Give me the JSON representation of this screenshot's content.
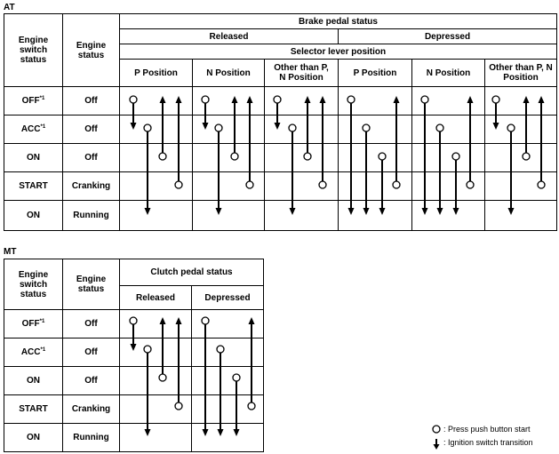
{
  "at": {
    "label": "AT",
    "headers": {
      "engine_switch_status": "Engine switch status",
      "engine_status": "Engine status",
      "brake_pedal_status": "Brake pedal status",
      "released": "Released",
      "depressed": "Depressed",
      "selector_lever_position": "Selector lever position",
      "p_position": "P Position",
      "n_position": "N Position",
      "other_than": "Other than P, N Position"
    },
    "rows": [
      {
        "switch": "OFF",
        "sup": "*1",
        "engine": "Off"
      },
      {
        "switch": "ACC",
        "sup": "*1",
        "engine": "Off"
      },
      {
        "switch": "ON",
        "sup": "",
        "engine": "Off"
      },
      {
        "switch": "START",
        "sup": "",
        "engine": "Cranking"
      },
      {
        "switch": "ON",
        "sup": "",
        "engine": "Running"
      }
    ]
  },
  "mt": {
    "label": "MT",
    "headers": {
      "engine_switch_status": "Engine switch status",
      "engine_status": "Engine status",
      "clutch_pedal_status": "Clutch pedal status",
      "released": "Released",
      "depressed": "Depressed"
    },
    "rows": [
      {
        "switch": "OFF",
        "sup": "*1",
        "engine": "Off"
      },
      {
        "switch": "ACC",
        "sup": "*1",
        "engine": "Off"
      },
      {
        "switch": "ON",
        "sup": "",
        "engine": "Off"
      },
      {
        "switch": "START",
        "sup": "",
        "engine": "Cranking"
      },
      {
        "switch": "ON",
        "sup": "",
        "engine": "Running"
      }
    ]
  },
  "legend": {
    "press": ": Press push button start",
    "transition": ": Ignition switch transition"
  },
  "transitions": {
    "at": [
      [
        [
          0,
          1
        ],
        [
          1,
          4
        ],
        [
          2,
          0
        ],
        [
          3,
          0
        ]
      ],
      [
        [
          0,
          1
        ],
        [
          1,
          4
        ],
        [
          2,
          0
        ],
        [
          3,
          0
        ]
      ],
      [
        [
          0,
          1
        ],
        [
          1,
          4
        ],
        [
          2,
          0
        ],
        [
          3,
          0
        ]
      ],
      [
        [
          0,
          4
        ],
        [
          1,
          4
        ],
        [
          2,
          4
        ],
        [
          3,
          0
        ]
      ],
      [
        [
          0,
          4
        ],
        [
          1,
          4
        ],
        [
          2,
          4
        ],
        [
          3,
          0
        ]
      ],
      [
        [
          0,
          1
        ],
        [
          1,
          4
        ],
        [
          2,
          0
        ],
        [
          3,
          0
        ]
      ]
    ],
    "mt": [
      [
        [
          0,
          1
        ],
        [
          1,
          4
        ],
        [
          2,
          0
        ],
        [
          3,
          0
        ]
      ],
      [
        [
          0,
          4
        ],
        [
          1,
          4
        ],
        [
          2,
          4
        ],
        [
          3,
          0
        ]
      ]
    ]
  }
}
